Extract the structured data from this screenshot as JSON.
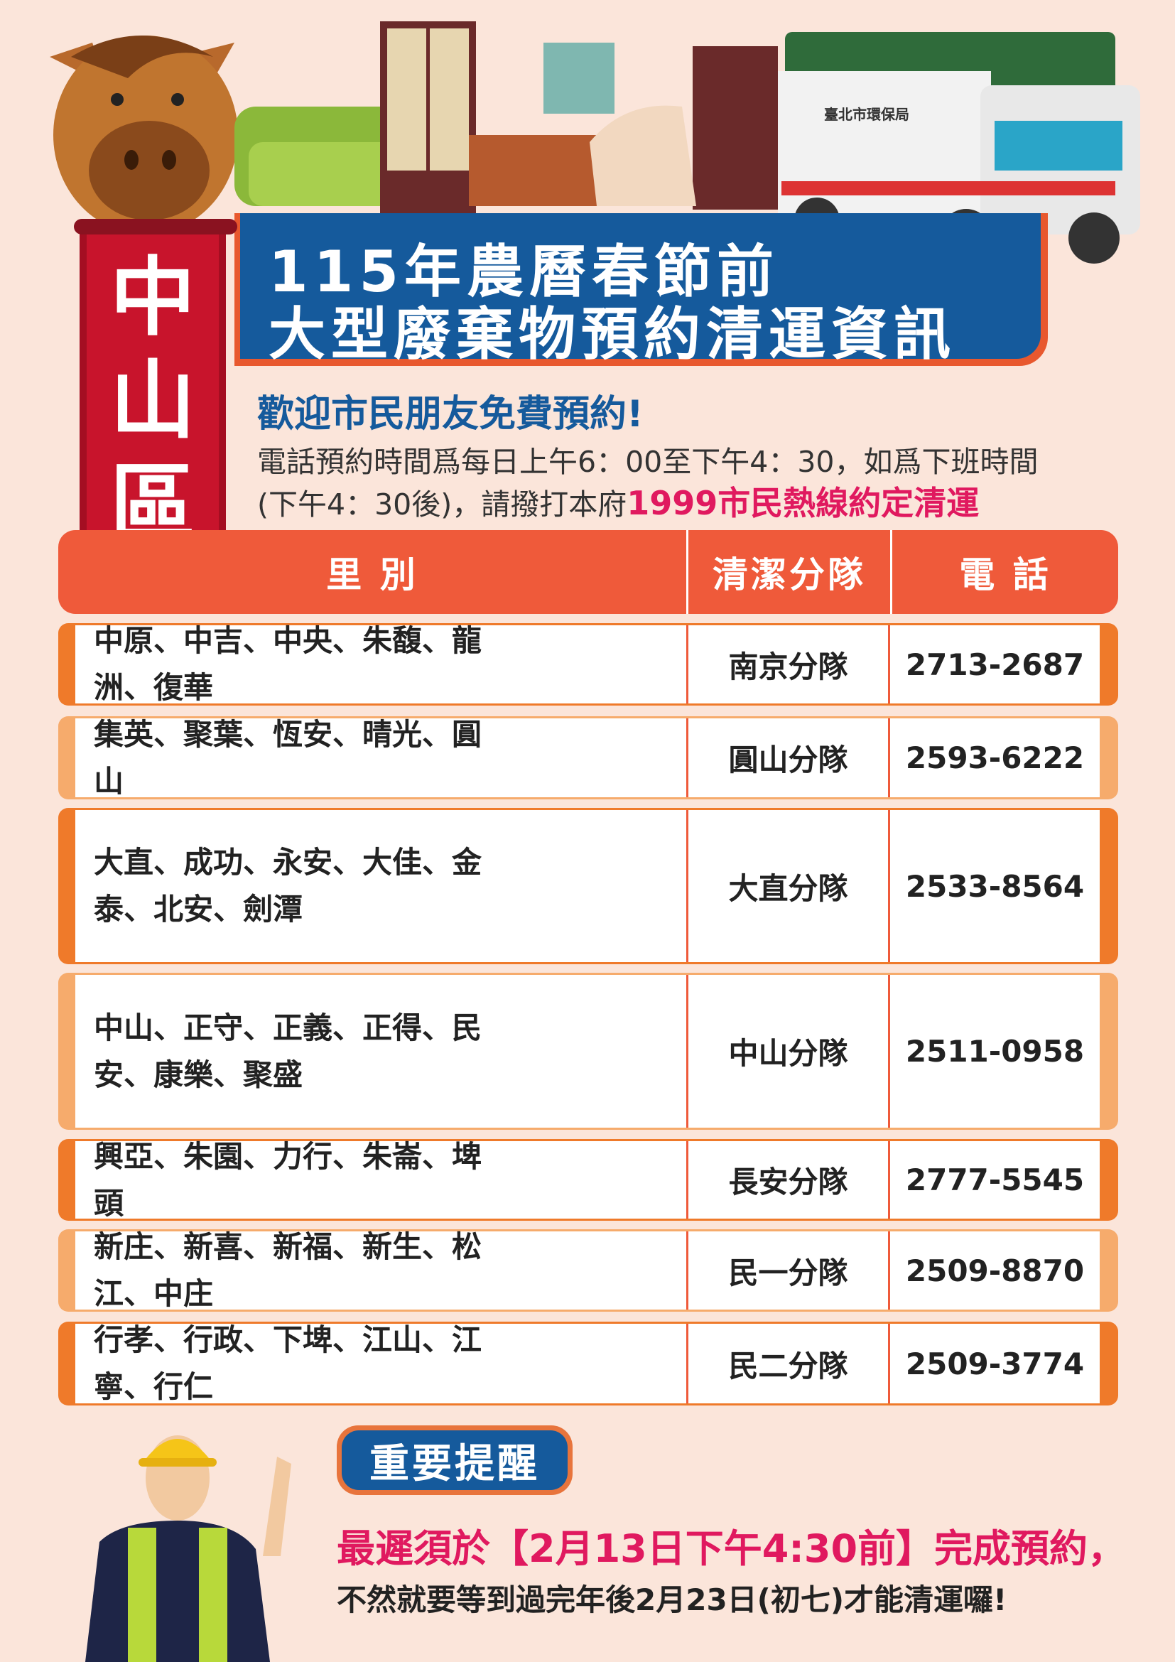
{
  "header": {
    "title_line1": "115年農曆春節前",
    "title_line2": "大型廢棄物預約清運資訊",
    "district": [
      "中",
      "山",
      "區"
    ],
    "truck_logo_text": "臺北市環保局"
  },
  "intro": {
    "welcome": "歡迎市民朋友免費預約!",
    "line1": "電話預約時間爲每日上午6：00至下午4：30，如爲下班時間",
    "line2_prefix": "(下午4：30後)，請撥打本府",
    "line2_highlight": "1999市民熱線約定清運"
  },
  "table": {
    "headers": [
      "里 別",
      "清潔分隊",
      "電 話"
    ],
    "rows": [
      {
        "villages": "中原、中吉、中央、朱馥、龍洲、復華",
        "team": "南京分隊",
        "phone": "2713-2687"
      },
      {
        "villages": "集英、聚葉、恆安、晴光、圓山",
        "team": "圓山分隊",
        "phone": "2593-6222"
      },
      {
        "villages": "大直、成功、永安、大佳、金泰、北安、劍潭",
        "team": "大直分隊",
        "phone": "2533-8564"
      },
      {
        "villages": "中山、正守、正義、正得、民安、康樂、聚盛",
        "team": "中山分隊",
        "phone": "2511-0958"
      },
      {
        "villages": "興亞、朱園、力行、朱崙、埤頭",
        "team": "長安分隊",
        "phone": "2777-5545"
      },
      {
        "villages": "新庄、新喜、新福、新生、松江、中庄",
        "team": "民一分隊",
        "phone": "2509-8870"
      },
      {
        "villages": "行孝、行政、下埤、江山、江寧、行仁",
        "team": "民二分隊",
        "phone": "2509-3774"
      }
    ]
  },
  "reminder": {
    "badge": "重要提醒",
    "deadline": "最遲須於【2月13日下午4:30前】完成預約，",
    "note": "不然就要等到過完年後2月23日(初七)才能清運囉!"
  },
  "colors": {
    "blue": "#155a9c",
    "red": "#c8142c",
    "orange": "#ef5a3a",
    "pink": "#e0195f",
    "row_dark": "#ef7a2a",
    "row_light": "#f6ab6c"
  }
}
